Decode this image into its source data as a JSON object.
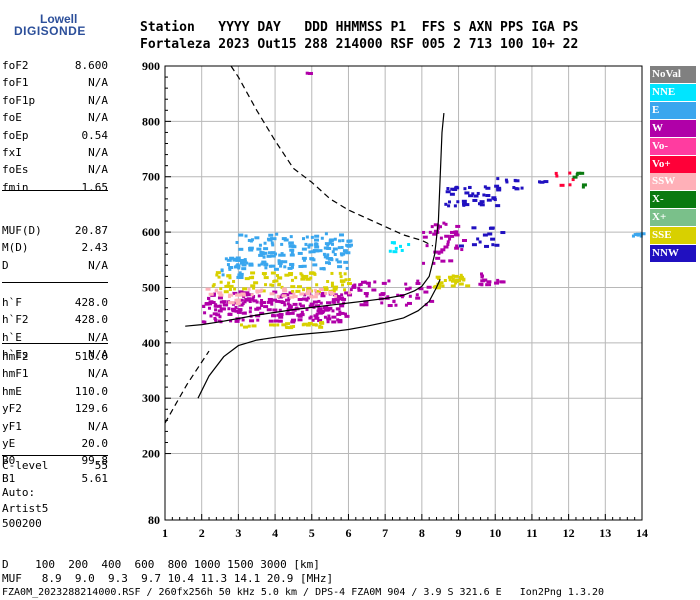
{
  "logo": {
    "brand_top": "Lowell",
    "brand_bottom": "DIGISONDE"
  },
  "header": {
    "line1": "Station   YYYY DAY   DDD HHMMSS P1  FFS S AXN PPS IGA PS",
    "line2": "Fortaleza 2023 Out15 288 214000 RSF 005 2 713 100 10+ 22"
  },
  "params_group1": [
    {
      "name": "foF2",
      "value": "8.600"
    },
    {
      "name": "foF1",
      "value": "N/A"
    },
    {
      "name": "foF1p",
      "value": "N/A"
    },
    {
      "name": "foE",
      "value": "N/A"
    },
    {
      "name": "foEp",
      "value": "0.54"
    },
    {
      "name": "fxI",
      "value": "N/A"
    },
    {
      "name": "foEs",
      "value": "N/A"
    },
    {
      "name": "fmin",
      "value": "1.65"
    }
  ],
  "params_group2": [
    {
      "name": "MUF(D)",
      "value": "20.87"
    },
    {
      "name": "M(D)",
      "value": "2.43"
    },
    {
      "name": "D",
      "value": "N/A"
    }
  ],
  "params_group3": [
    {
      "name": "h`F",
      "value": "428.0"
    },
    {
      "name": "h`F2",
      "value": "428.0"
    },
    {
      "name": "h`E",
      "value": "N/A"
    },
    {
      "name": "h`Es",
      "value": "N/A"
    }
  ],
  "params_group4": [
    {
      "name": "hmF2",
      "value": "510.0"
    },
    {
      "name": "hmF1",
      "value": "N/A"
    },
    {
      "name": "hmE",
      "value": "110.0"
    },
    {
      "name": "yF2",
      "value": "129.6"
    },
    {
      "name": "yF1",
      "value": "N/A"
    },
    {
      "name": "yE",
      "value": "20.0"
    },
    {
      "name": "B0",
      "value": "99.8"
    },
    {
      "name": "B1",
      "value": "5.61"
    }
  ],
  "params_group5": [
    {
      "name": "C-level",
      "value": "55"
    }
  ],
  "auto": {
    "line1": "Auto:",
    "line2": "Artist5",
    "line3": "500200"
  },
  "bottom": {
    "d_row": "D    100  200  400  600  800 1000 1500 3000 [km]",
    "muf_row": "MUF   8.9  9.0  9.3  9.7 10.4 11.3 14.1 20.9 [MHz]",
    "footer": "FZA0M_2023288214000.RSF / 260fx256h 50 kHz 5.0 km / DPS-4 FZA0M 904 / 3.9 S 321.6 E   Ion2Png 1.3.20"
  },
  "legend": [
    {
      "label": "NoVal",
      "color": "#808080"
    },
    {
      "label": "NNE",
      "color": "#00e5ff"
    },
    {
      "label": "E",
      "color": "#3aa6ee"
    },
    {
      "label": "W",
      "color": "#b000a8"
    },
    {
      "label": "Vo-",
      "color": "#ff3ca0"
    },
    {
      "label": "Vo+",
      "color": "#ff0038"
    },
    {
      "label": "SSW",
      "color": "#ffb0b8"
    },
    {
      "label": "X-",
      "color": "#0a7a10"
    },
    {
      "label": "X+",
      "color": "#7ac08a"
    },
    {
      "label": "SSE",
      "color": "#d8d000"
    },
    {
      "label": "NNW",
      "color": "#2010c0"
    }
  ],
  "chart_data": {
    "type": "scatter",
    "xlim": [
      1,
      14
    ],
    "ylim": [
      80,
      900
    ],
    "x_ticks": [
      1,
      2,
      3,
      4,
      5,
      6,
      7,
      8,
      9,
      10,
      11,
      12,
      13,
      14
    ],
    "y_ticks": [
      80,
      200,
      300,
      400,
      500,
      600,
      700,
      800,
      900
    ],
    "grid": true,
    "profile_curve": [
      [
        1.55,
        430
      ],
      [
        2.0,
        433
      ],
      [
        2.5,
        438
      ],
      [
        3.0,
        444
      ],
      [
        3.5,
        450
      ],
      [
        4.0,
        455
      ],
      [
        4.5,
        460
      ],
      [
        5.0,
        464
      ],
      [
        5.5,
        468
      ],
      [
        6.0,
        472
      ],
      [
        6.5,
        476
      ],
      [
        7.0,
        480
      ],
      [
        7.5,
        486
      ],
      [
        7.8,
        494
      ],
      [
        8.0,
        502
      ],
      [
        8.2,
        520
      ],
      [
        8.35,
        560
      ],
      [
        8.45,
        620
      ],
      [
        8.5,
        700
      ],
      [
        8.55,
        780
      ],
      [
        8.6,
        815
      ]
    ],
    "true_height_curve": [
      [
        1.9,
        300
      ],
      [
        2.2,
        340
      ],
      [
        2.6,
        375
      ],
      [
        3.0,
        395
      ],
      [
        3.5,
        405
      ],
      [
        4.0,
        410
      ],
      [
        4.5,
        414
      ],
      [
        5.0,
        417
      ],
      [
        5.5,
        420
      ],
      [
        6.0,
        424
      ],
      [
        6.5,
        430
      ],
      [
        7.0,
        437
      ],
      [
        7.5,
        445
      ],
      [
        7.9,
        458
      ],
      [
        8.2,
        475
      ],
      [
        8.4,
        500
      ],
      [
        8.5,
        515
      ]
    ],
    "dashed_curve": [
      [
        1.0,
        255
      ],
      [
        1.3,
        290
      ],
      [
        1.6,
        325
      ],
      [
        1.9,
        355
      ],
      [
        2.2,
        385
      ],
      [
        2.5,
        900
      ],
      [
        2.5,
        900
      ],
      [
        2.8,
        900
      ],
      [
        3.0,
        880
      ],
      [
        3.5,
        820
      ],
      [
        4.0,
        765
      ],
      [
        4.5,
        715
      ],
      [
        5.0,
        690
      ],
      [
        5.5,
        660
      ],
      [
        6.0,
        640
      ],
      [
        6.5,
        625
      ],
      [
        7.0,
        610
      ],
      [
        7.5,
        595
      ],
      [
        8.0,
        585
      ],
      [
        8.3,
        575
      ]
    ],
    "echo_clusters": [
      {
        "color": "#3aa6ee",
        "x0": 2.9,
        "x1": 6.0,
        "y0": 535,
        "y1": 600,
        "n": 160
      },
      {
        "color": "#3aa6ee",
        "x0": 2.5,
        "x1": 3.1,
        "y0": 520,
        "y1": 560,
        "n": 25
      },
      {
        "color": "#00e5ff",
        "x0": 7.0,
        "x1": 7.6,
        "y0": 565,
        "y1": 585,
        "n": 8
      },
      {
        "color": "#b000a8",
        "x0": 2.0,
        "x1": 6.0,
        "y0": 440,
        "y1": 495,
        "n": 220
      },
      {
        "color": "#b000a8",
        "x0": 6.0,
        "x1": 8.2,
        "y0": 470,
        "y1": 515,
        "n": 50
      },
      {
        "color": "#b000a8",
        "x0": 8.0,
        "x1": 9.1,
        "y0": 545,
        "y1": 620,
        "n": 40
      },
      {
        "color": "#b000a8",
        "x0": 9.5,
        "x1": 10.2,
        "y0": 505,
        "y1": 530,
        "n": 14
      },
      {
        "color": "#d8d000",
        "x0": 2.2,
        "x1": 6.0,
        "y0": 495,
        "y1": 530,
        "n": 90
      },
      {
        "color": "#d8d000",
        "x0": 3.0,
        "x1": 5.5,
        "y0": 430,
        "y1": 440,
        "n": 25
      },
      {
        "color": "#d8d000",
        "x0": 8.3,
        "x1": 9.2,
        "y0": 500,
        "y1": 525,
        "n": 30
      },
      {
        "color": "#ffb0b8",
        "x0": 2.0,
        "x1": 6.0,
        "y0": 485,
        "y1": 500,
        "n": 40
      },
      {
        "color": "#ffb0b8",
        "x0": 2.7,
        "x1": 3.0,
        "y0": 470,
        "y1": 480,
        "n": 6
      },
      {
        "color": "#2010c0",
        "x0": 8.6,
        "x1": 10.1,
        "y0": 650,
        "y1": 685,
        "n": 40
      },
      {
        "color": "#2010c0",
        "x0": 9.9,
        "x1": 10.7,
        "y0": 680,
        "y1": 700,
        "n": 10
      },
      {
        "color": "#2010c0",
        "x0": 8.9,
        "x1": 10.2,
        "y0": 575,
        "y1": 615,
        "n": 14
      },
      {
        "color": "#ff0038",
        "x0": 11.6,
        "x1": 12.1,
        "y0": 680,
        "y1": 710,
        "n": 6
      },
      {
        "color": "#0a7a10",
        "x0": 12.1,
        "x1": 12.9,
        "y0": 680,
        "y1": 710,
        "n": 6
      },
      {
        "color": "#3aa6ee",
        "x0": 13.7,
        "x1": 14.0,
        "y0": 590,
        "y1": 600,
        "n": 6
      },
      {
        "color": "#2010c0",
        "x0": 11.1,
        "x1": 11.4,
        "y0": 690,
        "y1": 695,
        "n": 3
      },
      {
        "color": "#b000a8",
        "x0": 4.8,
        "x1": 4.9,
        "y0": 888,
        "y1": 894,
        "n": 2
      }
    ]
  }
}
